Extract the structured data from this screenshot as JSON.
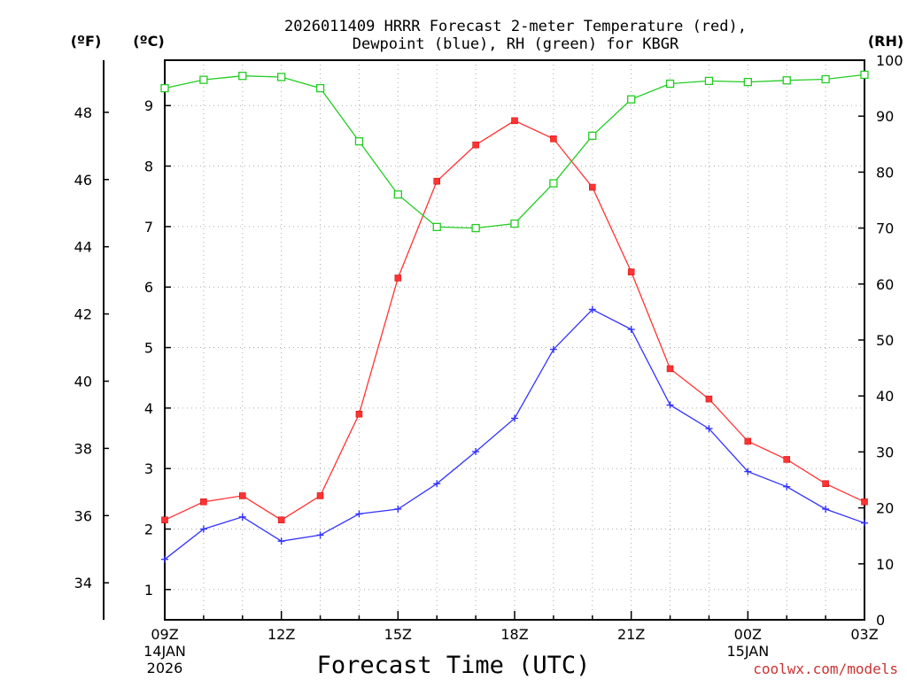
{
  "chart_data": {
    "type": "line",
    "title_line1": "2026011409 HRRR Forecast 2-meter Temperature (red),",
    "title_line2": "Dewpoint (blue), RH (green) for KBGR",
    "xlabel": "Forecast Time (UTC)",
    "left_outer_label": "(ºF)",
    "left_inner_label": "(ºC)",
    "right_label": "(RH)",
    "credit": "coolwx.com/models",
    "x_hours": [
      9,
      10,
      11,
      12,
      13,
      14,
      15,
      16,
      17,
      18,
      19,
      20,
      21,
      22,
      23,
      24,
      25,
      26,
      27
    ],
    "x_ticks": [
      {
        "hour": 9,
        "label": "09Z",
        "date1": "14JAN",
        "date2": "2026"
      },
      {
        "hour": 12,
        "label": "12Z"
      },
      {
        "hour": 15,
        "label": "15Z"
      },
      {
        "hour": 18,
        "label": "18Z"
      },
      {
        "hour": 21,
        "label": "21Z"
      },
      {
        "hour": 24,
        "label": "00Z",
        "date1": "15JAN"
      },
      {
        "hour": 27,
        "label": "03Z"
      }
    ],
    "ylim_c": [
      0.5,
      9.75
    ],
    "yticks_c": [
      1,
      2,
      3,
      4,
      5,
      6,
      7,
      8,
      9
    ],
    "yticks_f": [
      34,
      36,
      38,
      40,
      42,
      44,
      46,
      48
    ],
    "ylim_rh": [
      0,
      100
    ],
    "yticks_rh": [
      0,
      10,
      20,
      30,
      40,
      50,
      60,
      70,
      80,
      90,
      100
    ],
    "grid": true,
    "series": [
      {
        "name": "Temperature",
        "color": "#ff3333",
        "marker": "filled-square",
        "values": [
          2.15,
          2.45,
          2.55,
          2.15,
          2.55,
          3.9,
          6.15,
          7.75,
          8.35,
          8.75,
          8.45,
          7.65,
          6.25,
          4.65,
          4.15,
          3.45,
          3.15,
          2.75,
          2.45
        ]
      },
      {
        "name": "Dewpoint",
        "color": "#3333ff",
        "marker": "plus",
        "values": [
          1.5,
          2.0,
          2.2,
          1.8,
          1.9,
          2.25,
          2.33,
          2.75,
          3.28,
          3.83,
          4.97,
          5.63,
          5.3,
          4.05,
          3.66,
          2.95,
          2.7,
          2.33,
          2.1
        ]
      },
      {
        "name": "RH",
        "color": "#22cc22",
        "marker": "open-square",
        "axis": "right",
        "values": [
          95,
          96.5,
          97.2,
          97,
          95,
          85.5,
          76,
          70.2,
          70,
          70.8,
          78,
          86.5,
          93,
          95.8,
          96.3,
          96.1,
          96.4,
          96.6,
          97.4
        ]
      }
    ]
  }
}
